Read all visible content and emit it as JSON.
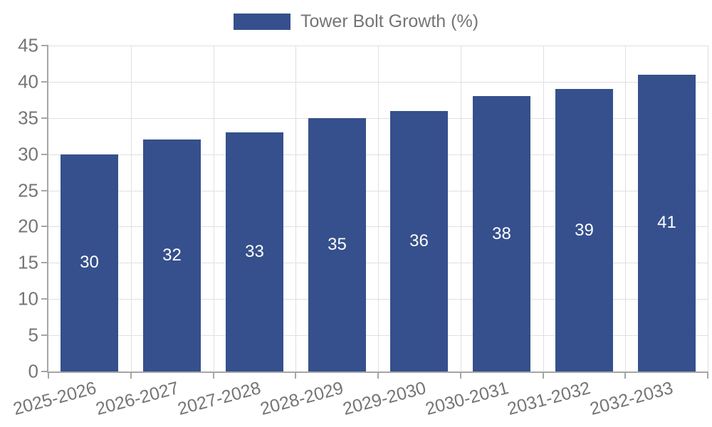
{
  "legend": {
    "label": "Tower Bolt Growth (%)"
  },
  "chart_data": {
    "type": "bar",
    "title": "",
    "xlabel": "",
    "ylabel": "",
    "categories": [
      "2025-2026",
      "2026-2027",
      "2027-2028",
      "2028-2029",
      "2029-2030",
      "2030-2031",
      "2031-2032",
      "2032-2033"
    ],
    "series": [
      {
        "name": "Tower Bolt Growth (%)",
        "values": [
          30,
          32,
          33,
          35,
          36,
          38,
          39,
          41
        ]
      }
    ],
    "value_labels": [
      "30",
      "32",
      "33",
      "35",
      "36",
      "38",
      "39",
      "41"
    ],
    "ylim": [
      0,
      45
    ],
    "yticks": [
      0,
      5,
      10,
      15,
      20,
      25,
      30,
      35,
      40,
      45
    ],
    "grid": true,
    "legend_position": "top-center",
    "x_label_rotation_deg": -15,
    "colors": {
      "bar": "#35508C",
      "value_label": "#FFFFFF",
      "tick_label": "#757575",
      "grid_line": "#E0E0E0",
      "axis_line": "#A6A6A6"
    }
  }
}
